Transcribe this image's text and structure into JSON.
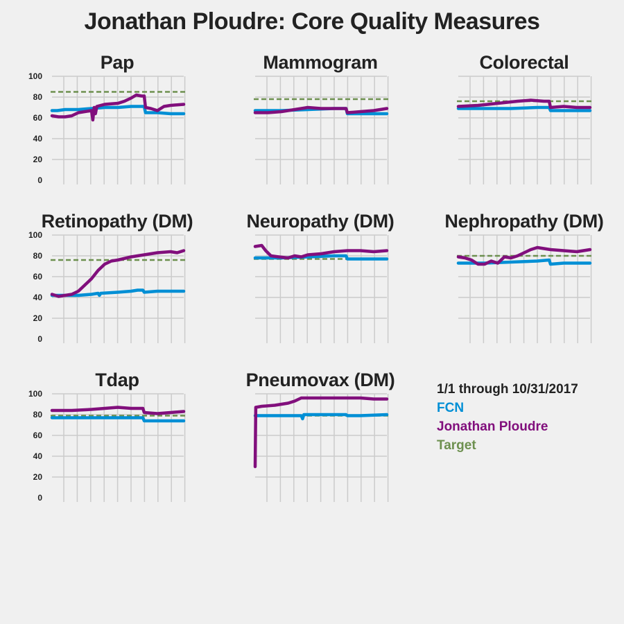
{
  "title": "Jonathan Ploudre: Core Quality Measures",
  "legend": {
    "period": "1/1 through 10/31/2017",
    "items": [
      {
        "label": "FCN",
        "color": "#008fd5"
      },
      {
        "label": "Jonathan Ploudre",
        "color": "#810f7c"
      },
      {
        "label": "Target",
        "color": "#6d904f"
      }
    ]
  },
  "chart_data": [
    {
      "type": "line",
      "title": "Pap",
      "ylim": [
        0,
        100
      ],
      "yticks": [
        "0",
        "20",
        "40",
        "60",
        "80",
        "100"
      ],
      "grid": true,
      "target": 85,
      "series": [
        {
          "name": "FCN",
          "color": "#008fd5",
          "x": [
            0,
            4,
            10,
            20,
            30,
            40,
            50,
            60,
            70,
            71,
            80,
            90,
            100
          ],
          "y": [
            67,
            67,
            68,
            68,
            69,
            70,
            70,
            71,
            71,
            65,
            65,
            64,
            64
          ]
        },
        {
          "name": "Jonathan Ploudre",
          "color": "#810f7c",
          "x": [
            0,
            5,
            10,
            15,
            20,
            30,
            31,
            32,
            33,
            34,
            40,
            50,
            55,
            60,
            64,
            68,
            70,
            71,
            75,
            80,
            85,
            90,
            100
          ],
          "y": [
            62,
            61,
            61,
            62,
            65,
            67,
            58,
            70,
            64,
            71,
            73,
            74,
            76,
            79,
            82,
            81,
            81,
            70,
            69,
            67,
            71,
            72,
            73
          ]
        }
      ]
    },
    {
      "type": "line",
      "title": "Mammogram",
      "ylim": [
        0,
        100
      ],
      "yticks": [],
      "grid": true,
      "target": 78,
      "series": [
        {
          "name": "FCN",
          "color": "#008fd5",
          "x": [
            0,
            20,
            40,
            60,
            69,
            70,
            80,
            100
          ],
          "y": [
            67,
            67,
            68,
            69,
            69,
            64,
            64,
            64
          ]
        },
        {
          "name": "Jonathan Ploudre",
          "color": "#810f7c",
          "x": [
            0,
            10,
            20,
            30,
            40,
            50,
            60,
            69,
            70,
            80,
            90,
            100
          ],
          "y": [
            65,
            65,
            66,
            68,
            70,
            69,
            69,
            69,
            65,
            66,
            67,
            69
          ]
        }
      ]
    },
    {
      "type": "line",
      "title": "Colorectal",
      "ylim": [
        0,
        100
      ],
      "yticks": [],
      "grid": true,
      "target": 76,
      "series": [
        {
          "name": "FCN",
          "color": "#008fd5",
          "x": [
            0,
            20,
            40,
            60,
            69,
            70,
            100
          ],
          "y": [
            69,
            69,
            69,
            70,
            70,
            67,
            67
          ]
        },
        {
          "name": "Jonathan Ploudre",
          "color": "#810f7c",
          "x": [
            0,
            15,
            30,
            45,
            55,
            65,
            69,
            70,
            80,
            90,
            100
          ],
          "y": [
            71,
            72,
            74,
            76,
            77,
            76,
            76,
            70,
            71,
            70,
            70
          ]
        }
      ]
    },
    {
      "type": "line",
      "title": "Retinopathy (DM)",
      "ylim": [
        0,
        100
      ],
      "yticks": [
        "0",
        "20",
        "40",
        "60",
        "80",
        "100"
      ],
      "grid": true,
      "target": 76,
      "series": [
        {
          "name": "FCN",
          "color": "#008fd5",
          "x": [
            0,
            20,
            30,
            35,
            36,
            37,
            50,
            60,
            65,
            69,
            70,
            80,
            90,
            100
          ],
          "y": [
            42,
            42,
            43,
            44,
            42,
            44,
            45,
            46,
            47,
            47,
            45,
            46,
            46,
            46
          ]
        },
        {
          "name": "Jonathan Ploudre",
          "color": "#810f7c",
          "x": [
            0,
            5,
            10,
            15,
            20,
            25,
            30,
            35,
            40,
            45,
            50,
            60,
            70,
            80,
            90,
            95,
            100
          ],
          "y": [
            43,
            41,
            42,
            43,
            46,
            52,
            58,
            66,
            72,
            75,
            76,
            79,
            81,
            83,
            84,
            83,
            85
          ]
        }
      ]
    },
    {
      "type": "line",
      "title": "Neuropathy (DM)",
      "ylim": [
        0,
        100
      ],
      "yticks": [],
      "grid": true,
      "target": 77,
      "series": [
        {
          "name": "FCN",
          "color": "#008fd5",
          "x": [
            0,
            20,
            40,
            60,
            69,
            70,
            80,
            100
          ],
          "y": [
            78,
            78,
            79,
            80,
            80,
            77,
            77,
            77
          ]
        },
        {
          "name": "Jonathan Ploudre",
          "color": "#810f7c",
          "x": [
            0,
            5,
            8,
            12,
            18,
            25,
            30,
            35,
            40,
            50,
            60,
            70,
            80,
            90,
            100
          ],
          "y": [
            89,
            90,
            85,
            80,
            79,
            78,
            80,
            79,
            81,
            82,
            84,
            85,
            85,
            84,
            85
          ]
        }
      ]
    },
    {
      "type": "line",
      "title": "Nephropathy (DM)",
      "ylim": [
        0,
        100
      ],
      "yticks": [],
      "grid": true,
      "target": 80,
      "series": [
        {
          "name": "FCN",
          "color": "#008fd5",
          "x": [
            0,
            20,
            40,
            60,
            69,
            70,
            80,
            100
          ],
          "y": [
            73,
            73,
            74,
            75,
            76,
            72,
            73,
            73
          ]
        },
        {
          "name": "Jonathan Ploudre",
          "color": "#810f7c",
          "x": [
            0,
            5,
            10,
            15,
            20,
            25,
            30,
            35,
            40,
            45,
            50,
            55,
            60,
            70,
            80,
            90,
            100
          ],
          "y": [
            79,
            78,
            76,
            72,
            72,
            75,
            73,
            79,
            78,
            80,
            83,
            86,
            88,
            86,
            85,
            84,
            86
          ]
        }
      ]
    },
    {
      "type": "line",
      "title": "Tdap",
      "ylim": [
        0,
        100
      ],
      "yticks": [
        "0",
        "20",
        "40",
        "60",
        "80",
        "100"
      ],
      "grid": true,
      "target": 79,
      "series": [
        {
          "name": "FCN",
          "color": "#008fd5",
          "x": [
            0,
            20,
            40,
            60,
            69,
            70,
            80,
            100
          ],
          "y": [
            77,
            77,
            77,
            77,
            77,
            74,
            74,
            74
          ]
        },
        {
          "name": "Jonathan Ploudre",
          "color": "#810f7c",
          "x": [
            0,
            15,
            30,
            40,
            50,
            60,
            69,
            70,
            80,
            90,
            100
          ],
          "y": [
            84,
            84,
            85,
            86,
            87,
            86,
            86,
            82,
            81,
            82,
            83
          ]
        }
      ]
    },
    {
      "type": "line",
      "title": "Pneumovax (DM)",
      "ylim": [
        0,
        100
      ],
      "yticks": [],
      "grid": true,
      "target": 79,
      "series": [
        {
          "name": "FCN",
          "color": "#008fd5",
          "x": [
            0,
            20,
            35,
            36,
            37,
            50,
            69,
            70,
            80,
            100
          ],
          "y": [
            79,
            79,
            79,
            76,
            80,
            80,
            80,
            79,
            79,
            80
          ]
        },
        {
          "name": "Jonathan Ploudre",
          "color": "#810f7c",
          "x": [
            0,
            0.5,
            5,
            15,
            25,
            30,
            35,
            50,
            60,
            69,
            70,
            80,
            90,
            100
          ],
          "y": [
            30,
            87,
            88,
            89,
            91,
            93,
            96,
            96,
            96,
            96,
            96,
            96,
            95,
            95
          ]
        }
      ]
    }
  ]
}
